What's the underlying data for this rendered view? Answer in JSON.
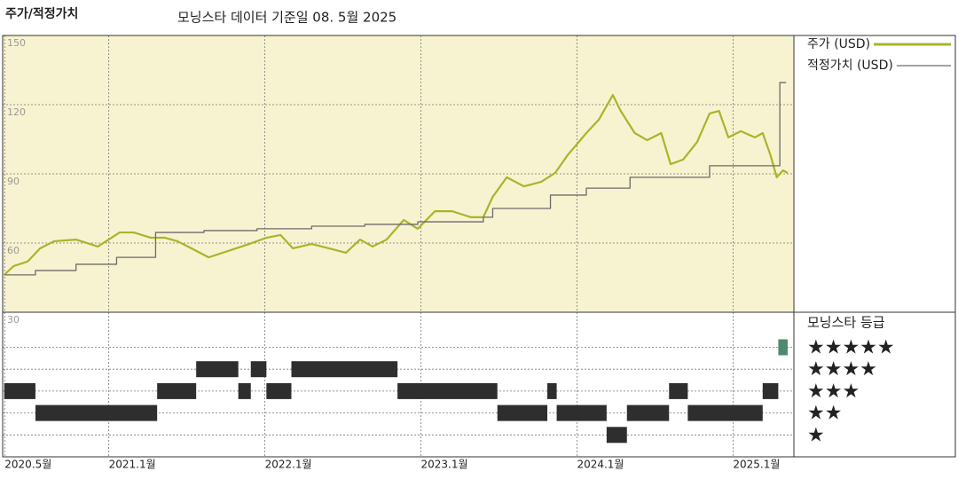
{
  "title": "주가/적정가치",
  "subtitle": "모닝스타 데이터 기준일 08. 5월 2025",
  "chart_data": [
    {
      "type": "line",
      "xlim": [
        2020.32,
        2025.39
      ],
      "ylim": [
        30,
        150
      ],
      "yticks": [
        30,
        60,
        90,
        120,
        150
      ],
      "grid": true,
      "background": "#f7f3d0",
      "series": [
        {
          "name": "주가 (USD)",
          "color": "#a9b42a",
          "step": false,
          "x": [
            2020.33,
            2020.39,
            2020.48,
            2020.56,
            2020.65,
            2020.79,
            2020.93,
            2021.07,
            2021.16,
            2021.27,
            2021.36,
            2021.44,
            2021.53,
            2021.64,
            2021.78,
            2021.9,
            2022.01,
            2022.1,
            2022.18,
            2022.3,
            2022.41,
            2022.52,
            2022.61,
            2022.69,
            2022.78,
            2022.89,
            2022.98,
            2023.09,
            2023.2,
            2023.32,
            2023.4,
            2023.46,
            2023.55,
            2023.66,
            2023.77,
            2023.86,
            2023.94,
            2024.06,
            2024.14,
            2024.23,
            2024.28,
            2024.37,
            2024.45,
            2024.54,
            2024.6,
            2024.68,
            2024.77,
            2024.85,
            2024.91,
            2024.97,
            2025.05,
            2025.14,
            2025.19,
            2025.24,
            2025.28,
            2025.32,
            2025.35
          ],
          "values": [
            46.2,
            50,
            52,
            57.7,
            60.8,
            61.5,
            58.5,
            64.6,
            64.6,
            62.3,
            62.3,
            60.8,
            57.7,
            53.8,
            56.9,
            59.6,
            62.3,
            63.5,
            57.7,
            59.6,
            57.7,
            55.8,
            61.5,
            58.5,
            61.5,
            70,
            66.2,
            73.8,
            73.8,
            71.2,
            71.2,
            80,
            88.5,
            84.6,
            86.5,
            90.4,
            98.1,
            107.7,
            113.5,
            124.2,
            117.3,
            107.7,
            104.6,
            107.7,
            94.2,
            96.2,
            103.8,
            116.2,
            117.3,
            105.8,
            108.5,
            105.8,
            107.7,
            98.1,
            88.5,
            91.5,
            90.4
          ]
        },
        {
          "name": "적정가치 (USD)",
          "color": "#6b6b6b",
          "step": true,
          "x": [
            2020.33,
            2020.53,
            2020.79,
            2021.05,
            2021.3,
            2021.61,
            2021.95,
            2022.3,
            2022.64,
            2022.98,
            2023.4,
            2023.46,
            2023.83,
            2024.06,
            2024.34,
            2024.85,
            2025.3,
            2025.34
          ],
          "values": [
            46.2,
            48.1,
            50.8,
            53.8,
            64.6,
            65.4,
            66.2,
            67.3,
            68.1,
            69.2,
            71.2,
            75,
            80.8,
            83.8,
            88.5,
            93.5,
            129.6,
            129.6
          ]
        }
      ]
    },
    {
      "type": "timeline",
      "title": "모닝스타 등급",
      "xlim": [
        2020.32,
        2025.39
      ],
      "xticks": [
        {
          "value": 2020.333,
          "label": "2020.5월"
        },
        {
          "value": 2021,
          "label": "2021.1월"
        },
        {
          "value": 2022,
          "label": "2022.1월"
        },
        {
          "value": 2023,
          "label": "2023.1월"
        },
        {
          "value": 2024,
          "label": "2024.1월"
        },
        {
          "value": 2025,
          "label": "2025.1월"
        }
      ],
      "ylim": [
        0,
        6.6
      ],
      "yticks": [
        {
          "value": 5,
          "label": "★★★★★"
        },
        {
          "value": 4,
          "label": "★★★★"
        },
        {
          "value": 3,
          "label": "★★★"
        },
        {
          "value": 2,
          "label": "★★"
        },
        {
          "value": 1,
          "label": "★"
        }
      ],
      "grid": true,
      "color": "#2e2e2e",
      "current_color": "#4f8a6e",
      "starts": [
        2020.33,
        2020.53,
        2021.31,
        2021.56,
        2021.83,
        2021.91,
        2022.01,
        2022.17,
        2022.85,
        2023.49,
        2023.81,
        2023.87,
        2024.19,
        2024.32,
        2024.59,
        2024.71,
        2025.19,
        2025.29
      ],
      "ends": [
        2020.53,
        2021.31,
        2021.56,
        2021.83,
        2021.91,
        2022.01,
        2022.17,
        2022.85,
        2023.49,
        2023.81,
        2023.87,
        2024.19,
        2024.32,
        2024.59,
        2024.71,
        2025.19,
        2025.29,
        2025.35
      ],
      "values": [
        3,
        2,
        3,
        4,
        3,
        4,
        3,
        4,
        3,
        2,
        3,
        2,
        1,
        2,
        3,
        2,
        3,
        5
      ]
    }
  ]
}
